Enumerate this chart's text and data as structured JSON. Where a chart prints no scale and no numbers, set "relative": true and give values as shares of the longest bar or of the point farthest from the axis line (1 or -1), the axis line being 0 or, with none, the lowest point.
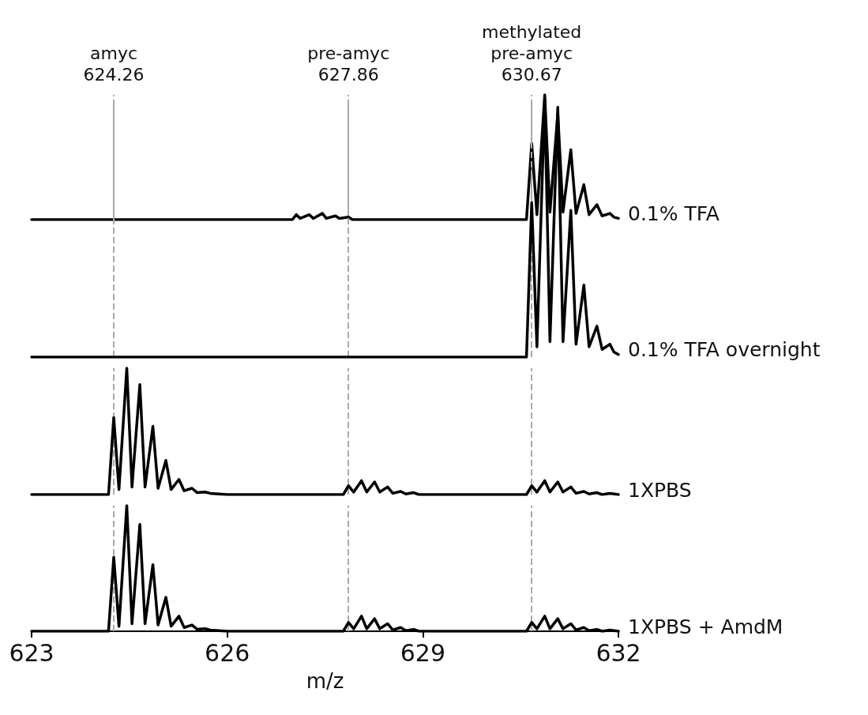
{
  "chart_data": [
    {
      "type": "line",
      "relative": true,
      "xlim": [
        623,
        632
      ],
      "xticks": [
        623,
        626,
        629,
        632
      ],
      "tick_labels": false,
      "series": [
        {
          "name": "0.1% TFA",
          "color": "#000000",
          "x": [
            623,
            627.0,
            627.06,
            627.12,
            627.26,
            627.32,
            627.46,
            627.52,
            627.66,
            627.72,
            627.86,
            627.92,
            630.59,
            630.67,
            630.75,
            630.87,
            630.95,
            631.07,
            631.15,
            631.27,
            631.35,
            631.47,
            631.55,
            631.67,
            631.75,
            631.87,
            631.93,
            632
          ],
          "values": [
            0,
            0,
            0.04,
            0.01,
            0.04,
            0.01,
            0.05,
            0.01,
            0.03,
            0.01,
            0.02,
            0,
            0,
            0.61,
            0.04,
            1,
            0.06,
            0.85,
            0.06,
            0.56,
            0.05,
            0.28,
            0.04,
            0.12,
            0.03,
            0.05,
            0.02,
            0.01
          ]
        }
      ],
      "ref_lines": [
        {
          "axis": "x",
          "value": 624.26,
          "label": "amyc\n624.26",
          "color": "#aaaaaa",
          "line_style": "dashed"
        },
        {
          "axis": "x",
          "value": 627.86,
          "label": "pre-amyc\n627.86",
          "color": "#aaaaaa",
          "line_style": "dashed"
        },
        {
          "axis": "x",
          "value": 630.67,
          "label": "methylated\npre-amyc\n630.67",
          "color": "#aaaaaa",
          "line_style": "dashed"
        }
      ]
    },
    {
      "type": "line",
      "relative": true,
      "xlim": [
        623,
        632
      ],
      "xticks": [
        623,
        626,
        629,
        632
      ],
      "tick_labels": false,
      "series": [
        {
          "name": "0.1% TFA overnight",
          "color": "#000000",
          "x": [
            623,
            630.59,
            630.67,
            630.75,
            630.87,
            630.95,
            631.07,
            631.15,
            631.27,
            631.35,
            631.47,
            631.55,
            631.67,
            631.75,
            631.87,
            631.93,
            632
          ],
          "values": [
            0,
            0,
            0.6,
            0.04,
            1,
            0.06,
            0.97,
            0.06,
            0.57,
            0.05,
            0.28,
            0.04,
            0.12,
            0.03,
            0.05,
            0.02,
            0.01
          ]
        }
      ],
      "ref_lines": [
        {
          "axis": "x",
          "value": 624.26,
          "color": "#aaaaaa",
          "line_style": "dashed"
        },
        {
          "axis": "x",
          "value": 627.86,
          "color": "#aaaaaa",
          "line_style": "dashed"
        },
        {
          "axis": "x",
          "value": 630.67,
          "color": "#aaaaaa",
          "line_style": "dashed"
        }
      ]
    },
    {
      "type": "line",
      "relative": true,
      "xlim": [
        623,
        632
      ],
      "xticks": [
        623,
        626,
        629,
        632
      ],
      "tick_labels": false,
      "series": [
        {
          "name": "1XPBS",
          "color": "#000000",
          "x": [
            623,
            624.18,
            624.26,
            624.34,
            624.46,
            624.54,
            624.66,
            624.74,
            624.86,
            624.94,
            625.06,
            625.14,
            625.26,
            625.34,
            625.46,
            625.54,
            625.66,
            625.74,
            626.0,
            627.78,
            627.86,
            627.94,
            628.06,
            628.14,
            628.26,
            628.34,
            628.46,
            628.54,
            628.66,
            628.74,
            628.86,
            628.94,
            629.1,
            630.59,
            630.67,
            630.75,
            630.87,
            630.95,
            631.07,
            631.15,
            631.27,
            631.35,
            631.47,
            631.55,
            631.67,
            631.75,
            631.87,
            632
          ],
          "values": [
            0,
            0,
            0.61,
            0.04,
            1,
            0.06,
            0.87,
            0.06,
            0.54,
            0.05,
            0.27,
            0.04,
            0.12,
            0.03,
            0.05,
            0.015,
            0.02,
            0.01,
            0,
            0,
            0.07,
            0.02,
            0.11,
            0.02,
            0.1,
            0.02,
            0.06,
            0.01,
            0.025,
            0.005,
            0.015,
            0,
            0,
            0,
            0.07,
            0.02,
            0.11,
            0.02,
            0.1,
            0.02,
            0.06,
            0.01,
            0.025,
            0.005,
            0.015,
            0,
            0.01,
            0
          ]
        }
      ],
      "ref_lines": [
        {
          "axis": "x",
          "value": 624.26,
          "color": "#aaaaaa",
          "line_style": "dashed"
        },
        {
          "axis": "x",
          "value": 627.86,
          "color": "#aaaaaa",
          "line_style": "dashed"
        },
        {
          "axis": "x",
          "value": 630.67,
          "color": "#aaaaaa",
          "line_style": "dashed"
        }
      ]
    },
    {
      "type": "line",
      "relative": true,
      "xlim": [
        623,
        632
      ],
      "xticks": [
        623,
        626,
        629,
        632
      ],
      "tick_labels": "x",
      "xlabel": "m/z",
      "series": [
        {
          "name": "1XPBS + AmdM",
          "color": "#000000",
          "x": [
            623,
            624.18,
            624.26,
            624.34,
            624.46,
            624.54,
            624.66,
            624.74,
            624.86,
            624.94,
            625.06,
            625.14,
            625.26,
            625.34,
            625.46,
            625.54,
            625.66,
            625.74,
            626.0,
            627.78,
            627.86,
            627.94,
            628.06,
            628.14,
            628.26,
            628.34,
            628.46,
            628.54,
            628.66,
            628.74,
            628.86,
            628.94,
            629.1,
            630.59,
            630.67,
            630.75,
            630.87,
            630.95,
            631.07,
            631.15,
            631.27,
            631.35,
            631.47,
            631.55,
            631.67,
            631.75,
            631.87,
            632
          ],
          "values": [
            0,
            0,
            0.59,
            0.04,
            1,
            0.06,
            0.85,
            0.06,
            0.53,
            0.05,
            0.27,
            0.04,
            0.12,
            0.03,
            0.05,
            0.015,
            0.02,
            0.01,
            0,
            0,
            0.07,
            0.02,
            0.12,
            0.02,
            0.1,
            0.02,
            0.06,
            0.01,
            0.03,
            0.005,
            0.015,
            0,
            0,
            0,
            0.07,
            0.02,
            0.12,
            0.02,
            0.1,
            0.02,
            0.06,
            0.01,
            0.03,
            0.005,
            0.015,
            0,
            0.01,
            0
          ]
        }
      ],
      "ref_lines": [
        {
          "axis": "x",
          "value": 624.26,
          "color": "#aaaaaa",
          "line_style": "dashed"
        },
        {
          "axis": "x",
          "value": 627.86,
          "color": "#aaaaaa",
          "line_style": "dashed"
        },
        {
          "axis": "x",
          "value": 630.67,
          "color": "#aaaaaa",
          "line_style": "dashed"
        }
      ]
    }
  ]
}
